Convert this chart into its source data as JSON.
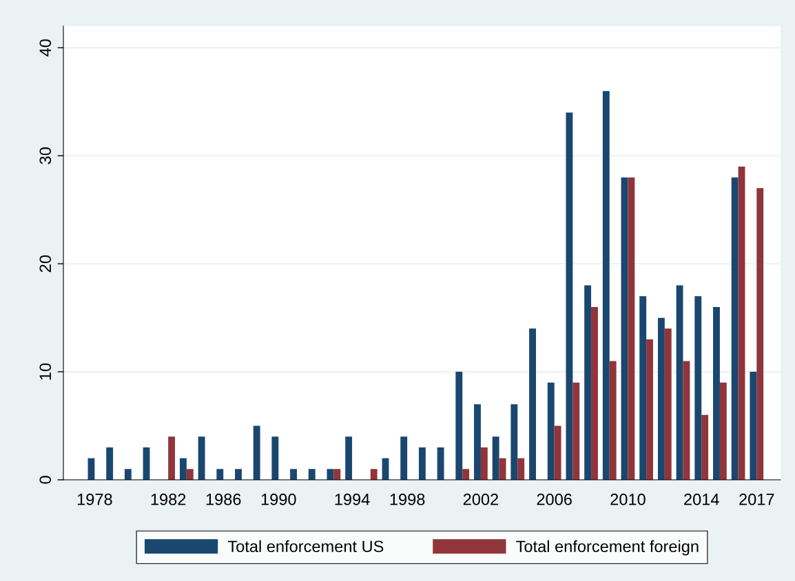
{
  "chart_data": {
    "type": "bar",
    "categories": [
      "1978",
      null,
      null,
      null,
      "1982",
      null,
      null,
      "1986",
      null,
      null,
      "1990",
      null,
      null,
      null,
      "1994",
      null,
      null,
      "1998",
      null,
      null,
      null,
      "2002",
      null,
      null,
      null,
      "2006",
      null,
      null,
      null,
      "2010",
      null,
      null,
      null,
      "2014",
      null,
      null,
      "2017"
    ],
    "series": [
      {
        "name": "Total enforcement US",
        "color": "#1a476f",
        "values": [
          2,
          3,
          1,
          3,
          0,
          2,
          4,
          1,
          1,
          5,
          4,
          1,
          1,
          1,
          4,
          0,
          2,
          4,
          3,
          3,
          10,
          7,
          4,
          7,
          14,
          9,
          34,
          18,
          36,
          28,
          17,
          15,
          18,
          17,
          16,
          28,
          10
        ]
      },
      {
        "name": "Total enforcement foreign",
        "color": "#90353b",
        "values": [
          0,
          0,
          0,
          0,
          4,
          1,
          0,
          0,
          0,
          0,
          0,
          0,
          0,
          1,
          0,
          1,
          0,
          0,
          0,
          0,
          1,
          3,
          2,
          2,
          0,
          5,
          9,
          16,
          11,
          28,
          13,
          14,
          11,
          6,
          9,
          29,
          27
        ]
      }
    ],
    "ylim": [
      0,
      42
    ],
    "yticks": [
      0,
      10,
      20,
      30,
      40
    ],
    "grid": "y",
    "legend": "bottom"
  }
}
